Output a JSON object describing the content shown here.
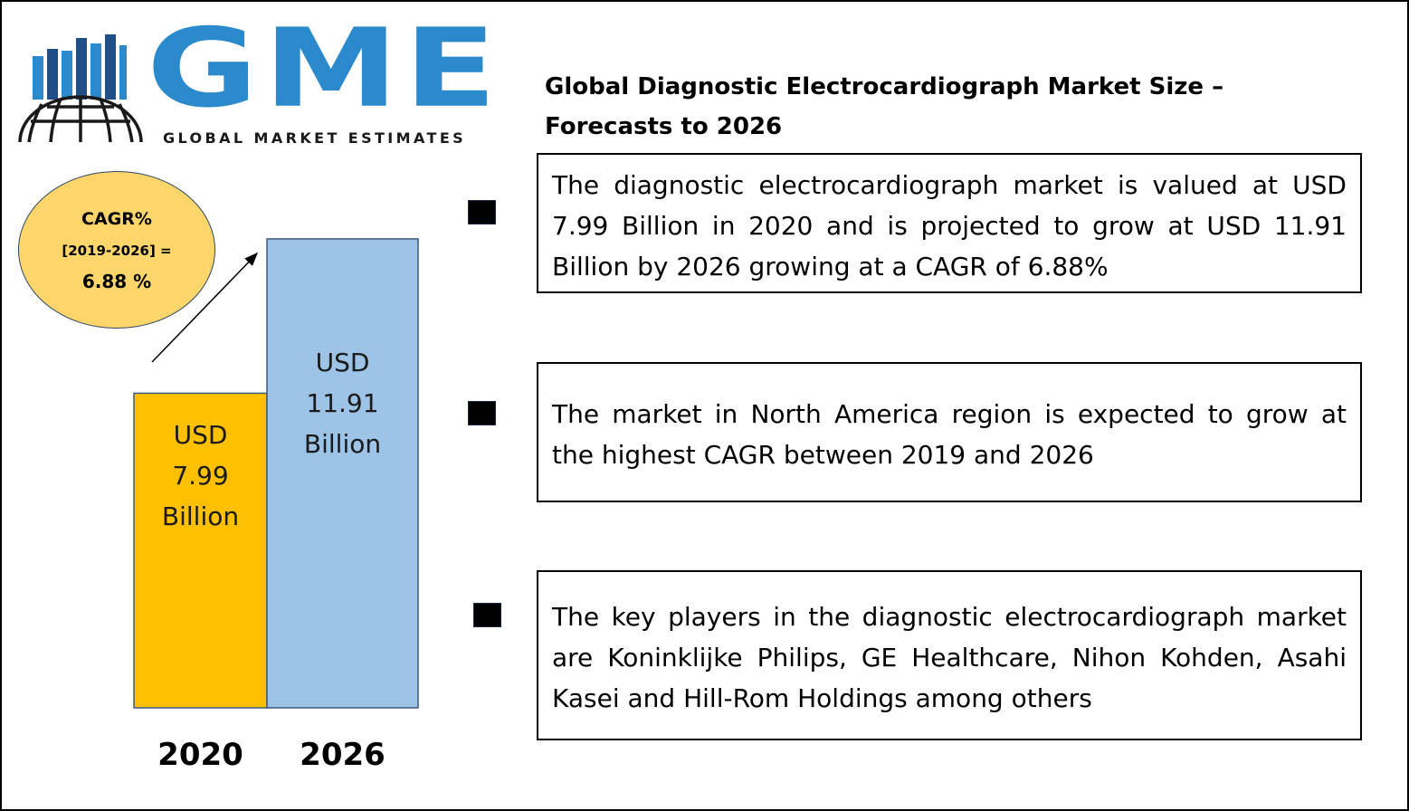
{
  "logo": {
    "word": "GME",
    "tagline": "GLOBAL MARKET ESTIMATES",
    "colors": {
      "primary": "#2b8acb",
      "dark": "#1a1a1a"
    }
  },
  "title_lines": [
    "Global Diagnostic Electrocardiograph Market Size –",
    "Forecasts to 2026"
  ],
  "cagr": {
    "label": "CAGR%",
    "period": "[2019-2026] =",
    "value": "6.88 %",
    "color": "#fcd56b"
  },
  "chart_data": {
    "type": "bar",
    "categories": [
      "2020",
      "2026"
    ],
    "values": [
      7.99,
      11.91
    ],
    "unit": "USD Billion",
    "data_labels": [
      [
        "USD",
        "7.99",
        "Billion"
      ],
      [
        "USD",
        "11.91",
        "Billion"
      ]
    ],
    "colors": [
      "#ffc000",
      "#9dc3e6"
    ],
    "title": "",
    "xlabel": "",
    "ylabel": "",
    "grid": false,
    "legend": "none"
  },
  "info_boxes": [
    {
      "text": "The diagnostic electrocardiograph market is valued at USD 7.99 Billion in 2020 and is projected to grow at USD 11.91 Billion by 2026 growing at a CAGR of 6.88%"
    },
    {
      "text": "The market in North America region is expected to grow at the highest CAGR between 2019 and 2026"
    },
    {
      "text": "The key players in the diagnostic electrocardiograph market are Koninklijke Philips, GE Healthcare, Nihon Kohden, Asahi Kasei and Hill-Rom Holdings among others"
    }
  ]
}
